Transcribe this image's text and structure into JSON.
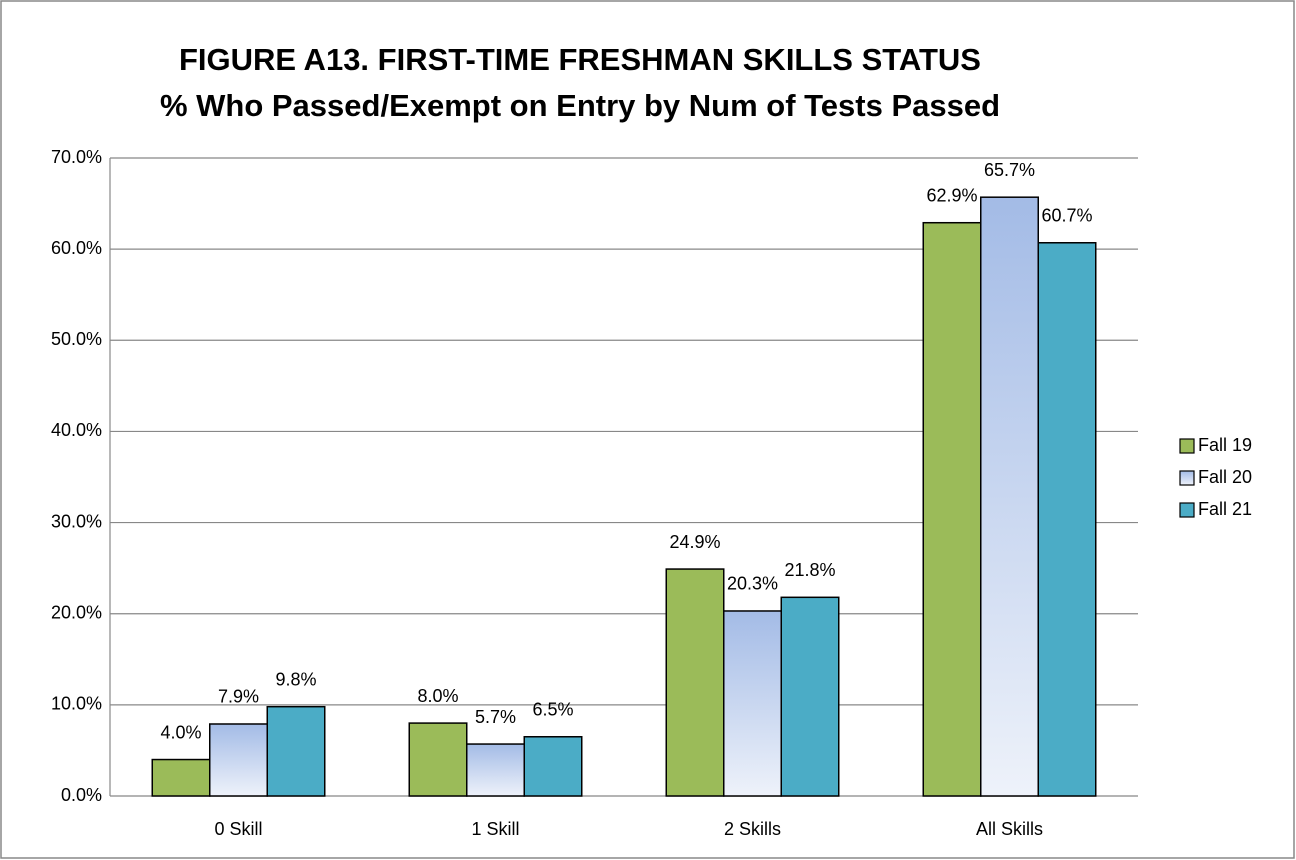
{
  "chart_data": {
    "type": "bar",
    "title": "FIGURE A13. FIRST-TIME FRESHMAN SKILLS STATUS",
    "subtitle": "% Who Passed/Exempt on Entry by Num of Tests Passed",
    "categories": [
      "0 Skill",
      "1 Skill",
      "2 Skills",
      "All Skills"
    ],
    "series": [
      {
        "name": "Fall 19",
        "color": "#9bbb59",
        "values": [
          4.0,
          8.0,
          24.9,
          62.9
        ],
        "value_labels": [
          "4.0%",
          "8.0%",
          "24.9%",
          "62.9%"
        ]
      },
      {
        "name": "Fall 20",
        "color": "#a3bbe6",
        "values": [
          7.9,
          5.7,
          20.3,
          65.7
        ],
        "value_labels": [
          "7.9%",
          "5.7%",
          "20.3%",
          "65.7%"
        ]
      },
      {
        "name": "Fall 21",
        "color": "#4bacc6",
        "values": [
          9.8,
          6.5,
          21.8,
          60.7
        ],
        "value_labels": [
          "9.8%",
          "6.5%",
          "21.8%",
          "60.7%"
        ]
      }
    ],
    "ylim": [
      0,
      70
    ],
    "yticks": [
      {
        "value": 0,
        "label": "0.0%"
      },
      {
        "value": 10,
        "label": "10.0%"
      },
      {
        "value": 20,
        "label": "20.0%"
      },
      {
        "value": 30,
        "label": "30.0%"
      },
      {
        "value": 40,
        "label": "40.0%"
      },
      {
        "value": 50,
        "label": "50.0%"
      },
      {
        "value": 60,
        "label": "60.0%"
      },
      {
        "value": 70,
        "label": "70.0%"
      }
    ],
    "grid": true,
    "legend": "right"
  }
}
